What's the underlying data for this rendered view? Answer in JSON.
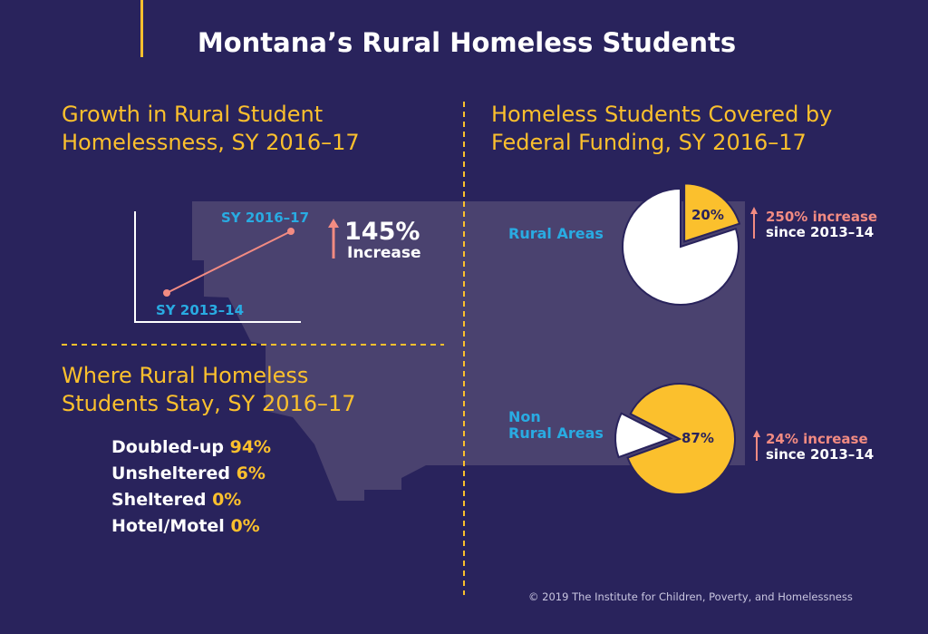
{
  "title": "Montana’s Rural Homeless Students",
  "growth": {
    "heading_line1": "Growth in Rural Student",
    "heading_line2": "Homelessness, SY 2016–17",
    "start_label": "SY 2013–14",
    "end_label": "SY 2016–17",
    "increase_value": "145%",
    "increase_label": "Increase"
  },
  "stay": {
    "heading_line1": "Where Rural Homeless",
    "heading_line2": "Students Stay, SY 2016–17",
    "items": [
      {
        "label": "Doubled-up",
        "value": "94%"
      },
      {
        "label": "Unsheltered",
        "value": "6%"
      },
      {
        "label": "Sheltered",
        "value": "0%"
      },
      {
        "label": "Hotel/Motel",
        "value": "0%"
      }
    ]
  },
  "funding": {
    "heading_line1": "Homeless Students Covered by",
    "heading_line2": "Federal Funding, SY 2016–17",
    "rural": {
      "label": "Rural Areas",
      "pct_label": "20%",
      "increase": "250% increase",
      "since": "since 2013–14"
    },
    "nonrural": {
      "label_line1": "Non",
      "label_line2": "Rural Areas",
      "pct_label": "87%",
      "increase": "24% increase",
      "since": "since 2013–14"
    }
  },
  "copyright": "© 2019 The Institute for Children, Poverty, and Homelessness",
  "colors": {
    "bg": "#29235c",
    "map": "#4a426f",
    "yellow": "#fbc02d",
    "blue": "#29abe2",
    "salmon": "#f28b82",
    "white": "#ffffff"
  },
  "chart_data": [
    {
      "type": "line",
      "title": "Growth in Rural Student Homelessness, SY 2016–17",
      "x": [
        "SY 2013–14",
        "SY 2016–17"
      ],
      "values": [
        100,
        245
      ],
      "annotation": "145% Increase"
    },
    {
      "type": "pie",
      "title": "Rural Areas",
      "categories": [
        "Covered by federal funding",
        "Not covered"
      ],
      "values": [
        20,
        80
      ],
      "annotation": "250% increase since 2013–14"
    },
    {
      "type": "pie",
      "title": "Non Rural Areas",
      "categories": [
        "Covered by federal funding",
        "Not covered"
      ],
      "values": [
        87,
        13
      ],
      "annotation": "24% increase since 2013–14"
    }
  ]
}
